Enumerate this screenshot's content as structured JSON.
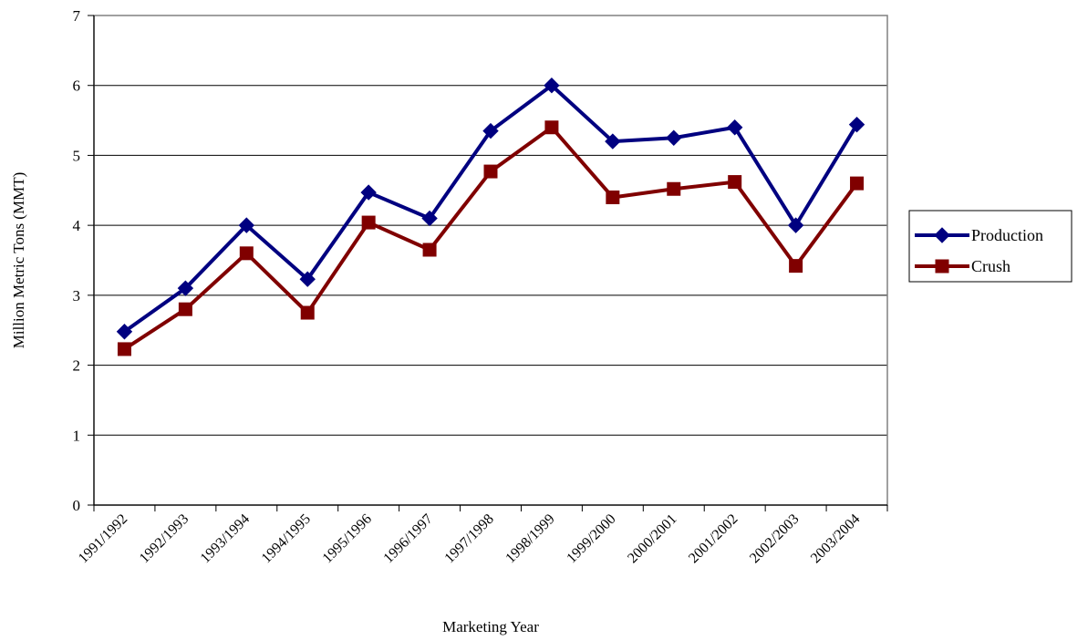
{
  "chart_data": {
    "type": "line",
    "title": "",
    "xlabel": "Marketing Year",
    "ylabel": "Million Metric Tons (MMT)",
    "ylim": [
      0,
      7
    ],
    "yticks": [
      "0",
      "1",
      "2",
      "3",
      "4",
      "5",
      "6",
      "7"
    ],
    "grid": "horizontal",
    "legend_position": "right",
    "categories": [
      "1991/1992",
      "1992/1993",
      "1993/1994",
      "1994/1995",
      "1995/1996",
      "1996/1997",
      "1997/1998",
      "1998/1999",
      "1999/2000",
      "2000/2001",
      "2001/2002",
      "2002/2003",
      "2003/2004"
    ],
    "series": [
      {
        "name": "Production",
        "color": "#000080",
        "marker": "diamond",
        "values": [
          2.48,
          3.1,
          4.0,
          3.23,
          4.47,
          4.1,
          5.35,
          6.0,
          5.2,
          5.25,
          5.4,
          4.0,
          5.44
        ]
      },
      {
        "name": "Crush",
        "color": "#800000",
        "marker": "square",
        "values": [
          2.23,
          2.8,
          3.6,
          2.75,
          4.04,
          3.65,
          4.77,
          5.4,
          4.4,
          4.52,
          4.62,
          3.42,
          4.6
        ]
      }
    ]
  }
}
